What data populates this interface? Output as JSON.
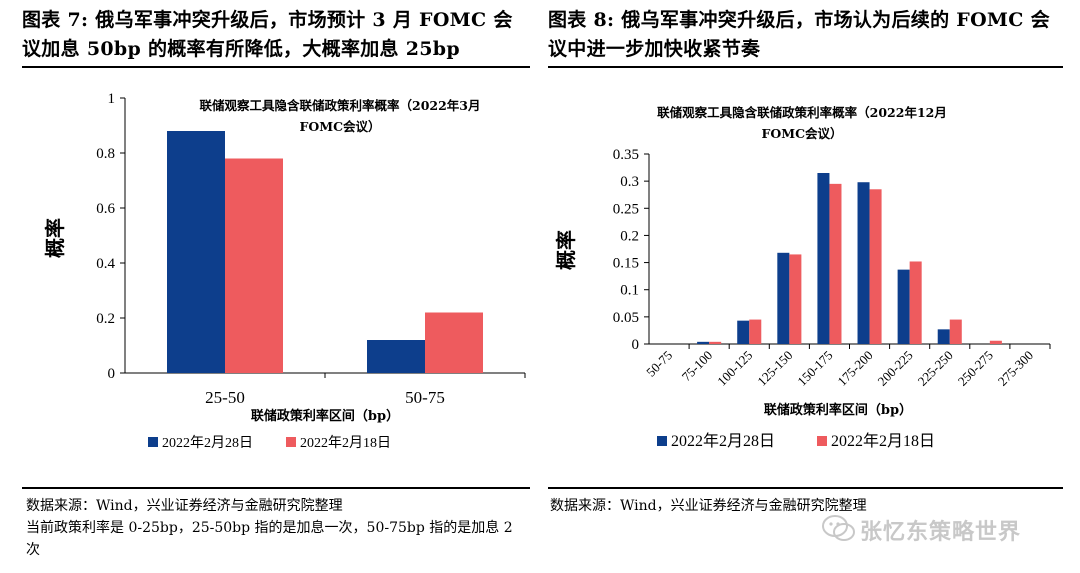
{
  "figures": {
    "left_title": "图表 7: 俄乌军事冲突升级后，市场预计 3 月 FOMC 会议加息 50bp 的概率有所降低，大概率加息 25bp",
    "right_title": "图表 8: 俄乌军事冲突升级后，市场认为后续的 FOMC 会议中进一步加快收紧节奏"
  },
  "notes": {
    "left_source": "数据来源：Wind，兴业证券经济与金融研究院整理",
    "left_note": "当前政策利率是 0-25bp，25-50bp 指的是加息一次，50-75bp 指的是加息 2 次",
    "right_source": "数据来源：Wind，兴业证券经济与金融研究院整理"
  },
  "watermark": "张忆东策略世界",
  "colors": {
    "series1": "#0d3e8c",
    "series2": "#ee5b5e"
  },
  "chart_data": [
    {
      "type": "bar",
      "title": "联储观察工具隐含联储政策利率概率（2022年3月FOMC会议）",
      "title_lines": [
        "联储观察工具隐含联储政策利率概率（2022年3月",
        "FOMC会议）"
      ],
      "xlabel": "联储政策利率区间（bp）",
      "ylabel": "概率",
      "categories": [
        "25-50",
        "50-75"
      ],
      "series": [
        {
          "name": "2022年2月28日",
          "values": [
            0.88,
            0.12
          ]
        },
        {
          "name": "2022年2月18日",
          "values": [
            0.78,
            0.22
          ]
        }
      ],
      "ylim": [
        0,
        1
      ],
      "yticks": [
        "0",
        "0.2",
        "0.4",
        "0.6",
        "0.8",
        "1"
      ],
      "legend": "bottom"
    },
    {
      "type": "bar",
      "title": "联储观察工具隐含联储政策利率概率（2022年12月FOMC会议）",
      "title_lines": [
        "联储观察工具隐含联储政策利率概率（2022年12月",
        "FOMC会议）"
      ],
      "xlabel": "联储政策利率区间（bp）",
      "ylabel": "概率",
      "categories": [
        "50-75",
        "75-100",
        "100-125",
        "125-150",
        "150-175",
        "175-200",
        "200-225",
        "225-250",
        "250-275",
        "275-300"
      ],
      "series": [
        {
          "name": "2022年2月28日",
          "values": [
            0.0,
            0.004,
            0.043,
            0.168,
            0.315,
            0.298,
            0.137,
            0.027,
            0.0,
            0.0
          ]
        },
        {
          "name": "2022年2月18日",
          "values": [
            0.0,
            0.004,
            0.045,
            0.165,
            0.295,
            0.285,
            0.152,
            0.045,
            0.006,
            0.0
          ]
        }
      ],
      "ylim": [
        0,
        0.35
      ],
      "yticks": [
        "0",
        "0.05",
        "0.1",
        "0.15",
        "0.2",
        "0.25",
        "0.3",
        "0.35"
      ],
      "legend": "bottom"
    }
  ]
}
